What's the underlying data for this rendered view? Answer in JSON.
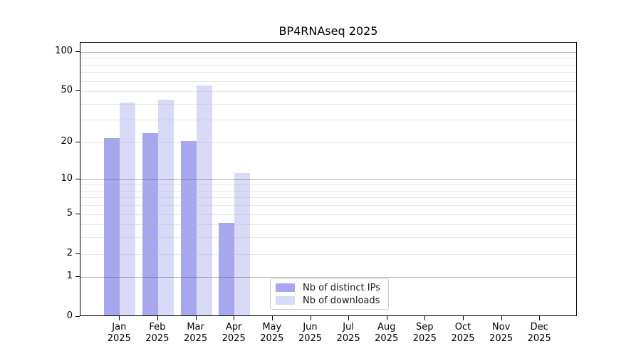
{
  "chart_data": {
    "type": "bar",
    "title": "BP4RNAseq 2025",
    "x_months": [
      "Jan",
      "Feb",
      "Mar",
      "Apr",
      "May",
      "Jun",
      "Jul",
      "Aug",
      "Sep",
      "Oct",
      "Nov",
      "Dec"
    ],
    "x_year": "2025",
    "series": [
      {
        "name": "Nb of distinct IPs",
        "color": "#a7a7ef",
        "values": [
          21,
          23,
          20,
          4,
          0,
          0,
          0,
          0,
          0,
          0,
          0,
          0
        ]
      },
      {
        "name": "Nb of downloads",
        "color": "#d9d9f8",
        "values": [
          40,
          42,
          54,
          11,
          0,
          0,
          0,
          0,
          0,
          0,
          0,
          0
        ]
      }
    ],
    "y_scale": "log1p",
    "y_ticks": [
      0,
      1,
      2,
      5,
      10,
      20,
      50,
      100
    ],
    "y_major_gridlines": [
      1,
      10,
      100
    ],
    "y_minor_gridlines": [
      2,
      3,
      4,
      5,
      6,
      7,
      8,
      9,
      20,
      30,
      40,
      50,
      60,
      70,
      80,
      90
    ],
    "ylim": [
      0,
      117
    ],
    "grid": true,
    "legend_position": "lower center",
    "axis_color": "#000000",
    "major_grid_color": "#bdbdbd",
    "minor_grid_color": "#e9e9e9"
  }
}
